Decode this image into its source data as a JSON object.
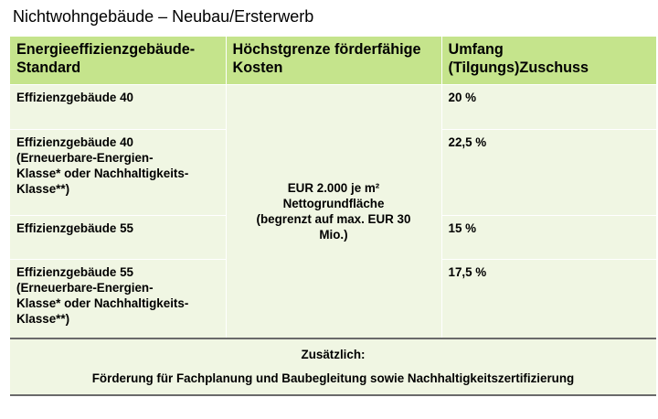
{
  "title": "Nichtwohngebäude – Neubau/Ersterwerb",
  "table": {
    "headers": [
      [
        "Energieeffizienzgebäude-",
        "Standard"
      ],
      [
        "Höchstgrenze förderfähige",
        "Kosten"
      ],
      [
        "Umfang",
        "(Tilgungs)Zuschuss"
      ]
    ],
    "rows": [
      {
        "standard": [
          "Effizienzgebäude 40"
        ],
        "grant": "20 %"
      },
      {
        "standard": [
          "Effizienzgebäude 40",
          "(Erneuerbare-Energien-",
          "Klasse* oder Nachhaltigkeits-",
          "Klasse**)"
        ],
        "grant": "22,5 %"
      },
      {
        "standard": [
          "Effizienzgebäude 55"
        ],
        "grant": "15 %"
      },
      {
        "standard": [
          "Effizienzgebäude 55",
          "(Erneuerbare-Energien-",
          "Klasse* oder Nachhaltigkeits-",
          "Klasse**)"
        ],
        "grant": "17,5 %"
      }
    ],
    "cost_lines": [
      "EUR 2.000 je m²",
      "Nettogrundfläche",
      "(begrenzt auf max. EUR 30",
      "Mio.)"
    ],
    "footer": {
      "line1": "Zusätzlich:",
      "line2": "Förderung für Fachplanung und Baubegleitung sowie Nachhaltigkeitszertifizierung"
    }
  }
}
